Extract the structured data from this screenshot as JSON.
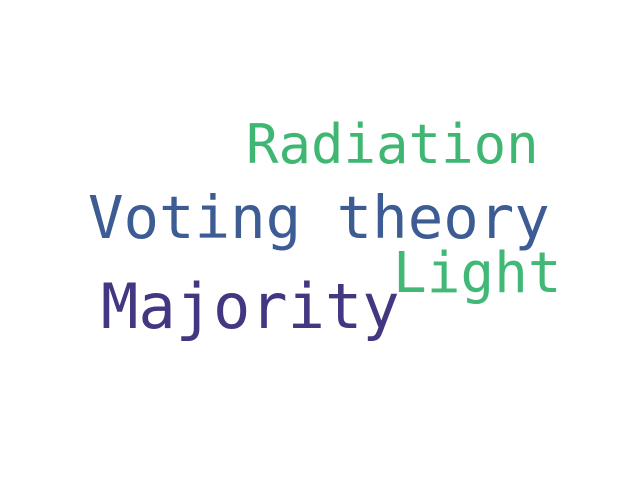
{
  "word_cloud": {
    "words": [
      {
        "text": "Radiation",
        "color": "#3fb772"
      },
      {
        "text": "Voting theory",
        "color": "#3e5c94"
      },
      {
        "text": "Light",
        "color": "#41b876"
      },
      {
        "text": "Majority",
        "color": "#443680"
      }
    ]
  }
}
